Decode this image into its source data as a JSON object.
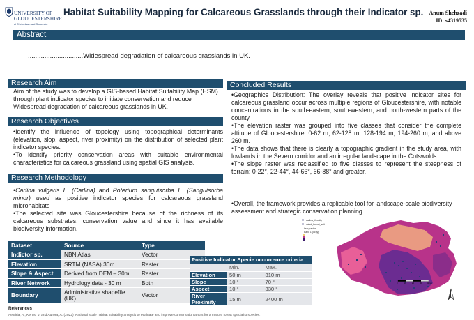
{
  "logo": {
    "line1": "UNIVERSITY OF",
    "line2": "GLOUCESTERSHIRE",
    "line3": "at Cheltenham and Gloucester"
  },
  "title": "Habitat Suitability Mapping for Calcareous Grasslands through their Indicator sp.",
  "author": {
    "name": "Anum Shehzadi",
    "id": "ID: s4319535"
  },
  "abstract": {
    "heading": "Abstract",
    "text": "..............................Widespread degradation of calcareous grasslands in UK."
  },
  "aim": {
    "heading": "Research Aim",
    "text": "Aim of the study was to develop a GIS-based Habitat Suitability Map (HSM) through plant indicator species to initiate conservation and reduce Widespread degradation of calcareous grasslands in UK."
  },
  "objectives": {
    "heading": "Research Objectives",
    "items": [
      "•Identify the influence of topology using topographical determinants (elevation, slop, aspect, river proximity) on the distribution of selected plant indicator species.",
      "•To identify priority conservation areas with suitable environmental characteristics for calcareous grassland using spatial GIS analysis."
    ]
  },
  "methodology": {
    "heading": "Research Methodology",
    "item1_bullet": "•",
    "item1_sp1": "Carlina vulgaris L. (Carlina)",
    "item1_and": " and ",
    "item1_sp2": "Poterium sanguisorba L. (Sanguisorba minor) used",
    "item1_rest": " as positive indicator species for calcareous grassland microhabitats",
    "item2": "•The selected site was Gloucestershire because of the richness of its calcareous substrates, conservation value and since it has available biodiversity information."
  },
  "results": {
    "heading": "Concluded Results",
    "items": [
      "•Geographics Distribution: The overlay reveals that positive indicator sites for calcareous grassland occur across multiple regions of Gloucestershire, with notable concentrations in the south-eastern, south-western, and north-western parts of the county.",
      "•The elevation raster was grouped into five classes that consider the complete altitude of Gloucestershire: 0-62 m, 62-128 m, 128-194 m, 194-260 m, and above 260 m.",
      "•The data shows that there is clearly a topographic gradient in the study area, with lowlands in the Severn corridor and an irregular landscape in the Cotswolds",
      "•The slope raster was reclassified to five classes to represent the steepness of terrain: 0-22°, 22-44°, 44-66°, 66-88° and greater."
    ],
    "overall": "•Overall, the framework provides a replicable tool for landscape-scale biodiversity assessment and strategic conservation planning."
  },
  "dataset_table": {
    "headers": [
      "Dataset",
      "Source",
      "Type"
    ],
    "rows": [
      [
        "Indictor sp.",
        "NBN Atlas",
        "Vector"
      ],
      [
        "Elevation",
        "SRTM (NASA) 30m",
        "Raster"
      ],
      [
        "Slope & Aspect",
        "Derived from DEM – 30m",
        "Raster"
      ],
      [
        "River Network",
        "Hydrology data - 30 m",
        "Both"
      ],
      [
        "Boundary",
        "Administrative shapefile (UK)",
        "Vector"
      ]
    ]
  },
  "criteria_table": {
    "caption": "Positive Indicator Specie occurrence criteria",
    "headers": [
      "",
      "Min.",
      "Max."
    ],
    "rows": [
      [
        "Elevation",
        "50 m",
        "310 m"
      ],
      [
        "Slope",
        "10 °",
        "70 °"
      ],
      [
        "Aspect",
        "10 °",
        "330 °"
      ],
      [
        "River Proximity",
        "15 m",
        "2400 m"
      ]
    ]
  },
  "map": {
    "legend": [
      "carlina_thrustfy",
      "salad_burnet_sett",
      "hsm_raster",
      "Band 1 (Gray)"
    ],
    "scale_labels": [
      "0",
      "10",
      "20",
      "30",
      "40 km"
    ],
    "colors": {
      "magenta": "#b8338a",
      "purple": "#6b2c91",
      "salmon": "#e99a82",
      "pink": "#e85f98",
      "points": "#2a3c7a"
    }
  },
  "references": {
    "heading": "References",
    "text": "Aestiria, A., Kerus, V. and Aurora, A. (2022) 'National scale habitat suitability analysis to evaluate and improve conservation areas for a mature forest specialist species."
  }
}
